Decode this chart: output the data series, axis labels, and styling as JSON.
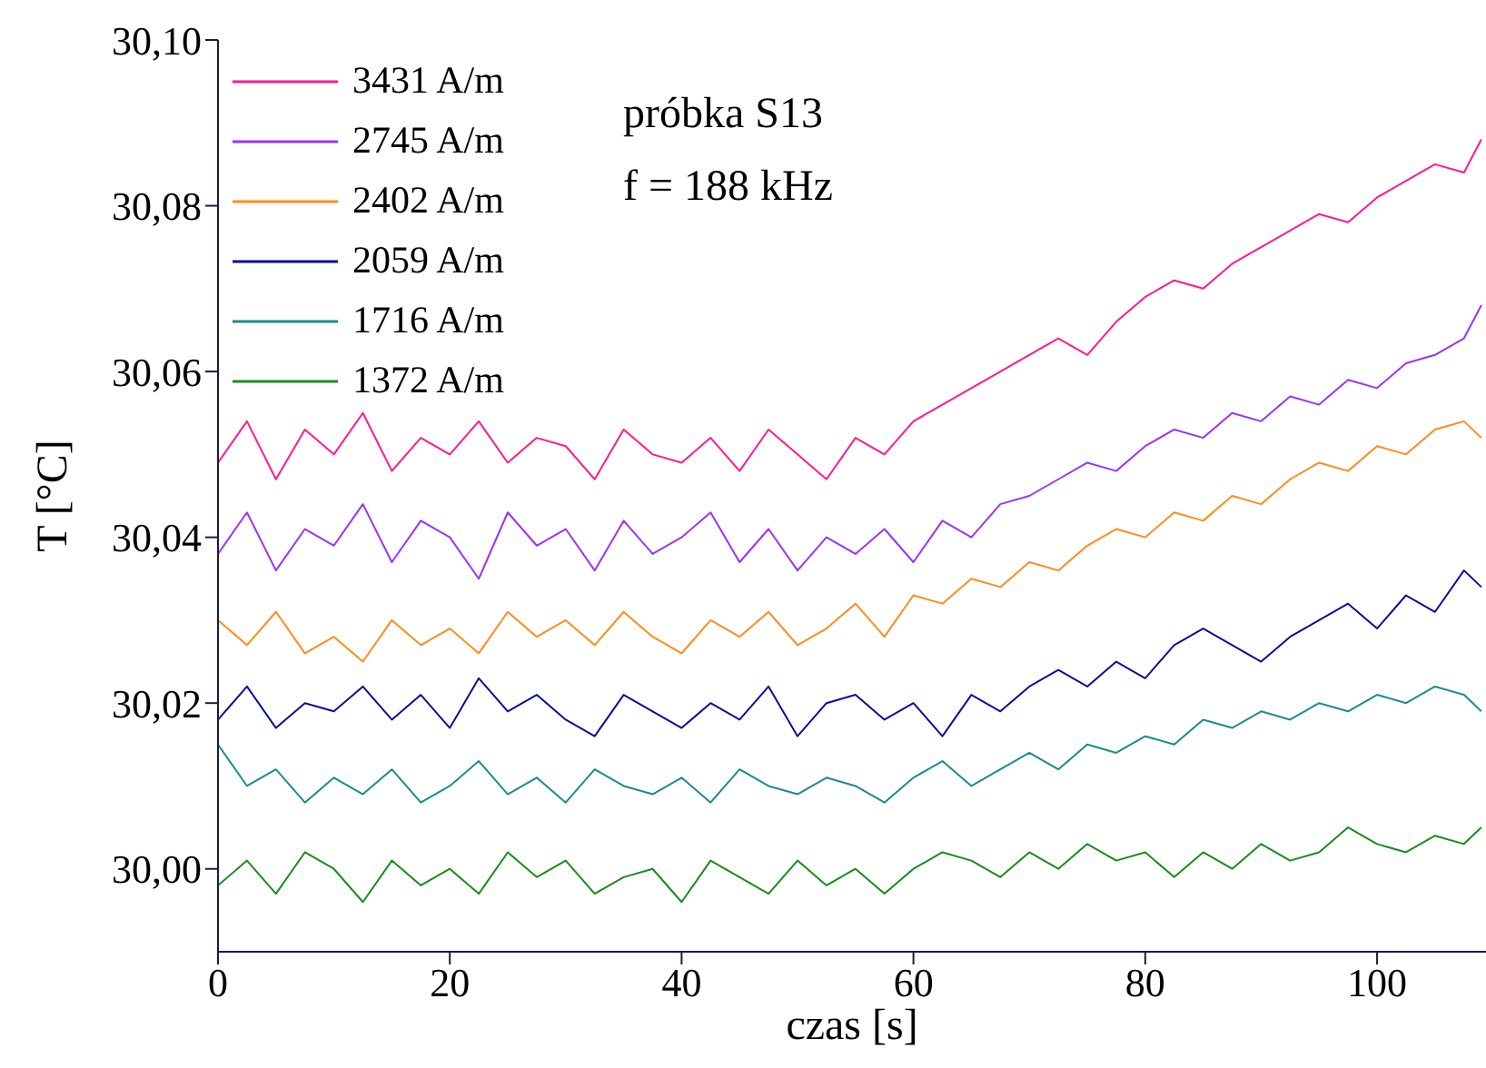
{
  "chart_data": {
    "type": "line",
    "xlabel": "czas [s]",
    "ylabel": "T [°C]",
    "annotations": [
      "próbka S13",
      "f = 188 kHz"
    ],
    "x": [
      0,
      2.5,
      5,
      7.5,
      10,
      12.5,
      15,
      17.5,
      20,
      22.5,
      25,
      27.5,
      30,
      32.5,
      35,
      37.5,
      40,
      42.5,
      45,
      47.5,
      50,
      52.5,
      55,
      57.5,
      60,
      62.5,
      65,
      67.5,
      70,
      72.5,
      75,
      77.5,
      80,
      82.5,
      85,
      87.5,
      90,
      92.5,
      95,
      97.5,
      100,
      102.5,
      105,
      107.5,
      109
    ],
    "xlim": [
      0,
      109.4
    ],
    "xticks": [
      0,
      20,
      40,
      60,
      80,
      100
    ],
    "ylim": [
      29.99,
      30.1
    ],
    "yticks": [
      {
        "value": 30,
        "label": "30,00"
      },
      {
        "value": 30.02,
        "label": "30,02"
      },
      {
        "value": 30.04,
        "label": "30,04"
      },
      {
        "value": 30.06,
        "label": "30,06"
      },
      {
        "value": 30.08,
        "label": "30,08"
      },
      {
        "value": 30.1,
        "label": "30,10"
      }
    ],
    "grid": false,
    "legend": "top left",
    "marker": "none",
    "line_style": "solid",
    "series": [
      {
        "name": "3431 A/m",
        "color": "#ff1a8c",
        "values": [
          30.049,
          30.054,
          30.047,
          30.053,
          30.05,
          30.055,
          30.048,
          30.052,
          30.05,
          30.054,
          30.049,
          30.052,
          30.051,
          30.047,
          30.053,
          30.05,
          30.049,
          30.052,
          30.048,
          30.053,
          30.05,
          30.047,
          30.052,
          30.05,
          30.054,
          30.056,
          30.058,
          30.06,
          30.062,
          30.064,
          30.062,
          30.066,
          30.069,
          30.071,
          30.07,
          30.073,
          30.075,
          30.077,
          30.079,
          30.078,
          30.081,
          30.083,
          30.085,
          30.084,
          30.088
        ]
      },
      {
        "name": "2745 A/m",
        "color": "#9933ff",
        "values": [
          30.038,
          30.043,
          30.036,
          30.041,
          30.039,
          30.044,
          30.037,
          30.042,
          30.04,
          30.035,
          30.043,
          30.039,
          30.041,
          30.036,
          30.042,
          30.038,
          30.04,
          30.043,
          30.037,
          30.041,
          30.036,
          30.04,
          30.038,
          30.041,
          30.037,
          30.042,
          30.04,
          30.044,
          30.045,
          30.047,
          30.049,
          30.048,
          30.051,
          30.053,
          30.052,
          30.055,
          30.054,
          30.057,
          30.056,
          30.059,
          30.058,
          30.061,
          30.062,
          30.064,
          30.068
        ]
      },
      {
        "name": "2402 A/m",
        "color": "#ff8c1a",
        "values": [
          30.03,
          30.027,
          30.031,
          30.026,
          30.028,
          30.025,
          30.03,
          30.027,
          30.029,
          30.026,
          30.031,
          30.028,
          30.03,
          30.027,
          30.031,
          30.028,
          30.026,
          30.03,
          30.028,
          30.031,
          30.027,
          30.029,
          30.032,
          30.028,
          30.033,
          30.032,
          30.035,
          30.034,
          30.037,
          30.036,
          30.039,
          30.041,
          30.04,
          30.043,
          30.042,
          30.045,
          30.044,
          30.047,
          30.049,
          30.048,
          30.051,
          30.05,
          30.053,
          30.054,
          30.052
        ]
      },
      {
        "name": "2059 A/m",
        "color": "#0d0d99",
        "values": [
          30.018,
          30.022,
          30.017,
          30.02,
          30.019,
          30.022,
          30.018,
          30.021,
          30.017,
          30.023,
          30.019,
          30.021,
          30.018,
          30.016,
          30.021,
          30.019,
          30.017,
          30.02,
          30.018,
          30.022,
          30.016,
          30.02,
          30.021,
          30.018,
          30.02,
          30.016,
          30.021,
          30.019,
          30.022,
          30.024,
          30.022,
          30.025,
          30.023,
          30.027,
          30.029,
          30.027,
          30.025,
          30.028,
          30.03,
          30.032,
          30.029,
          30.033,
          30.031,
          30.036,
          30.034
        ]
      },
      {
        "name": "1716 A/m",
        "color": "#1a8c8c",
        "values": [
          30.015,
          30.01,
          30.012,
          30.008,
          30.011,
          30.009,
          30.012,
          30.008,
          30.01,
          30.013,
          30.009,
          30.011,
          30.008,
          30.012,
          30.01,
          30.009,
          30.011,
          30.008,
          30.012,
          30.01,
          30.009,
          30.011,
          30.01,
          30.008,
          30.011,
          30.013,
          30.01,
          30.012,
          30.014,
          30.012,
          30.015,
          30.014,
          30.016,
          30.015,
          30.018,
          30.017,
          30.019,
          30.018,
          30.02,
          30.019,
          30.021,
          30.02,
          30.022,
          30.021,
          30.019
        ]
      },
      {
        "name": "1372 A/m",
        "color": "#1a8c1a",
        "values": [
          29.998,
          30.001,
          29.997,
          30.002,
          30.0,
          29.996,
          30.001,
          29.998,
          30.0,
          29.997,
          30.002,
          29.999,
          30.001,
          29.997,
          29.999,
          30.0,
          29.996,
          30.001,
          29.999,
          29.997,
          30.001,
          29.998,
          30.0,
          29.997,
          30.0,
          30.002,
          30.001,
          29.999,
          30.002,
          30.0,
          30.003,
          30.001,
          30.002,
          29.999,
          30.002,
          30.0,
          30.003,
          30.001,
          30.002,
          30.005,
          30.003,
          30.002,
          30.004,
          30.003,
          30.005
        ]
      }
    ]
  }
}
